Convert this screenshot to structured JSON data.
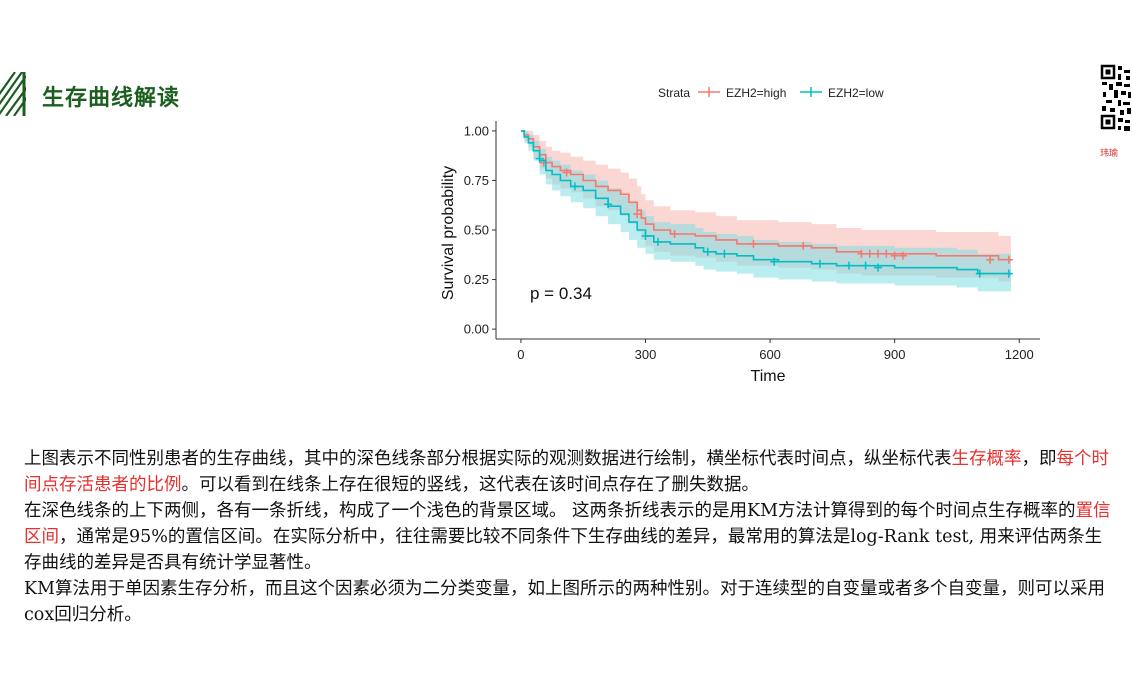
{
  "header": {
    "title": "生存曲线解读"
  },
  "qr": {
    "caption": "玮瑜"
  },
  "chart_data": {
    "type": "line",
    "subtype": "kaplan-meier",
    "legend": {
      "title": "Strata",
      "placement": "top",
      "entries": [
        "EZH2=high",
        "EZH2=low"
      ]
    },
    "xlabel": "Time",
    "ylabel": "Survival probability",
    "xlim": [
      -60,
      1250
    ],
    "ylim": [
      -0.05,
      1.05
    ],
    "xticks": [
      0,
      300,
      600,
      900,
      1200
    ],
    "yticks": [
      0.0,
      0.25,
      0.5,
      0.75,
      1.0
    ],
    "xtick_labels": [
      "0",
      "300",
      "600",
      "900",
      "1200"
    ],
    "ytick_labels": [
      "0.00",
      "0.25",
      "0.50",
      "0.75",
      "1.00"
    ],
    "grid": false,
    "annotation": "p = 0.34",
    "colors": {
      "high": "#f8766d",
      "low": "#00bfc4",
      "high_band": "#f9c9c5",
      "low_band": "#7fdfe2"
    },
    "series": [
      {
        "name": "EZH2=high",
        "color": "#f8766d",
        "steps": [
          [
            0,
            1.0
          ],
          [
            8,
            0.98
          ],
          [
            18,
            0.96
          ],
          [
            30,
            0.92
          ],
          [
            45,
            0.88
          ],
          [
            60,
            0.84
          ],
          [
            75,
            0.82
          ],
          [
            95,
            0.8
          ],
          [
            120,
            0.78
          ],
          [
            150,
            0.75
          ],
          [
            180,
            0.72
          ],
          [
            210,
            0.7
          ],
          [
            240,
            0.68
          ],
          [
            260,
            0.64
          ],
          [
            280,
            0.6
          ],
          [
            290,
            0.56
          ],
          [
            300,
            0.53
          ],
          [
            320,
            0.5
          ],
          [
            360,
            0.48
          ],
          [
            420,
            0.47
          ],
          [
            470,
            0.45
          ],
          [
            520,
            0.43
          ],
          [
            620,
            0.42
          ],
          [
            700,
            0.41
          ],
          [
            760,
            0.39
          ],
          [
            820,
            0.38
          ],
          [
            1000,
            0.37
          ],
          [
            1150,
            0.35
          ],
          [
            1180,
            0.35
          ]
        ],
        "lower": [
          [
            0,
            1.0
          ],
          [
            8,
            0.95
          ],
          [
            18,
            0.92
          ],
          [
            30,
            0.86
          ],
          [
            45,
            0.81
          ],
          [
            60,
            0.76
          ],
          [
            75,
            0.73
          ],
          [
            95,
            0.71
          ],
          [
            120,
            0.69
          ],
          [
            150,
            0.66
          ],
          [
            180,
            0.62
          ],
          [
            210,
            0.6
          ],
          [
            240,
            0.57
          ],
          [
            260,
            0.53
          ],
          [
            280,
            0.49
          ],
          [
            290,
            0.45
          ],
          [
            300,
            0.42
          ],
          [
            320,
            0.39
          ],
          [
            360,
            0.37
          ],
          [
            420,
            0.36
          ],
          [
            470,
            0.34
          ],
          [
            520,
            0.32
          ],
          [
            620,
            0.31
          ],
          [
            700,
            0.3
          ],
          [
            760,
            0.28
          ],
          [
            820,
            0.27
          ],
          [
            1000,
            0.26
          ],
          [
            1150,
            0.24
          ],
          [
            1180,
            0.24
          ]
        ],
        "upper": [
          [
            0,
            1.0
          ],
          [
            8,
            1.0
          ],
          [
            18,
            1.0
          ],
          [
            30,
            0.98
          ],
          [
            45,
            0.95
          ],
          [
            60,
            0.92
          ],
          [
            75,
            0.9
          ],
          [
            95,
            0.89
          ],
          [
            120,
            0.87
          ],
          [
            150,
            0.85
          ],
          [
            180,
            0.83
          ],
          [
            210,
            0.81
          ],
          [
            240,
            0.79
          ],
          [
            260,
            0.76
          ],
          [
            280,
            0.72
          ],
          [
            290,
            0.68
          ],
          [
            300,
            0.65
          ],
          [
            320,
            0.62
          ],
          [
            360,
            0.6
          ],
          [
            420,
            0.59
          ],
          [
            470,
            0.57
          ],
          [
            520,
            0.55
          ],
          [
            620,
            0.54
          ],
          [
            700,
            0.53
          ],
          [
            760,
            0.51
          ],
          [
            820,
            0.5
          ],
          [
            1000,
            0.49
          ],
          [
            1150,
            0.47
          ],
          [
            1180,
            0.47
          ]
        ],
        "censors": [
          [
            55,
            0.84
          ],
          [
            110,
            0.79
          ],
          [
            280,
            0.58
          ],
          [
            370,
            0.48
          ],
          [
            560,
            0.43
          ],
          [
            680,
            0.42
          ],
          [
            820,
            0.38
          ],
          [
            840,
            0.38
          ],
          [
            860,
            0.38
          ],
          [
            880,
            0.38
          ],
          [
            900,
            0.37
          ],
          [
            920,
            0.37
          ],
          [
            1130,
            0.35
          ],
          [
            1175,
            0.35
          ]
        ]
      },
      {
        "name": "EZH2=low",
        "color": "#00bfc4",
        "steps": [
          [
            0,
            1.0
          ],
          [
            8,
            0.97
          ],
          [
            18,
            0.94
          ],
          [
            30,
            0.9
          ],
          [
            45,
            0.85
          ],
          [
            60,
            0.8
          ],
          [
            75,
            0.78
          ],
          [
            95,
            0.75
          ],
          [
            120,
            0.72
          ],
          [
            150,
            0.7
          ],
          [
            180,
            0.66
          ],
          [
            210,
            0.62
          ],
          [
            240,
            0.58
          ],
          [
            260,
            0.54
          ],
          [
            280,
            0.5
          ],
          [
            300,
            0.47
          ],
          [
            320,
            0.44
          ],
          [
            360,
            0.43
          ],
          [
            420,
            0.41
          ],
          [
            440,
            0.39
          ],
          [
            470,
            0.38
          ],
          [
            520,
            0.37
          ],
          [
            560,
            0.35
          ],
          [
            620,
            0.34
          ],
          [
            700,
            0.33
          ],
          [
            760,
            0.32
          ],
          [
            900,
            0.31
          ],
          [
            1050,
            0.3
          ],
          [
            1100,
            0.28
          ],
          [
            1180,
            0.28
          ]
        ],
        "lower": [
          [
            0,
            1.0
          ],
          [
            8,
            0.94
          ],
          [
            18,
            0.9
          ],
          [
            30,
            0.85
          ],
          [
            45,
            0.78
          ],
          [
            60,
            0.73
          ],
          [
            75,
            0.7
          ],
          [
            95,
            0.67
          ],
          [
            120,
            0.64
          ],
          [
            150,
            0.61
          ],
          [
            180,
            0.57
          ],
          [
            210,
            0.53
          ],
          [
            240,
            0.49
          ],
          [
            260,
            0.45
          ],
          [
            280,
            0.41
          ],
          [
            300,
            0.38
          ],
          [
            320,
            0.35
          ],
          [
            360,
            0.34
          ],
          [
            420,
            0.32
          ],
          [
            440,
            0.3
          ],
          [
            470,
            0.29
          ],
          [
            520,
            0.28
          ],
          [
            560,
            0.26
          ],
          [
            620,
            0.25
          ],
          [
            700,
            0.24
          ],
          [
            760,
            0.23
          ],
          [
            900,
            0.22
          ],
          [
            1050,
            0.21
          ],
          [
            1100,
            0.19
          ],
          [
            1180,
            0.19
          ]
        ],
        "upper": [
          [
            0,
            1.0
          ],
          [
            8,
            1.0
          ],
          [
            18,
            0.98
          ],
          [
            30,
            0.95
          ],
          [
            45,
            0.91
          ],
          [
            60,
            0.87
          ],
          [
            75,
            0.85
          ],
          [
            95,
            0.83
          ],
          [
            120,
            0.8
          ],
          [
            150,
            0.78
          ],
          [
            180,
            0.75
          ],
          [
            210,
            0.71
          ],
          [
            240,
            0.67
          ],
          [
            260,
            0.64
          ],
          [
            280,
            0.6
          ],
          [
            300,
            0.57
          ],
          [
            320,
            0.54
          ],
          [
            360,
            0.53
          ],
          [
            420,
            0.51
          ],
          [
            440,
            0.49
          ],
          [
            470,
            0.48
          ],
          [
            520,
            0.47
          ],
          [
            560,
            0.45
          ],
          [
            620,
            0.44
          ],
          [
            700,
            0.43
          ],
          [
            760,
            0.42
          ],
          [
            900,
            0.41
          ],
          [
            1050,
            0.4
          ],
          [
            1100,
            0.38
          ],
          [
            1180,
            0.38
          ]
        ],
        "censors": [
          [
            45,
            0.86
          ],
          [
            130,
            0.72
          ],
          [
            210,
            0.63
          ],
          [
            300,
            0.47
          ],
          [
            330,
            0.44
          ],
          [
            450,
            0.39
          ],
          [
            490,
            0.38
          ],
          [
            610,
            0.34
          ],
          [
            720,
            0.33
          ],
          [
            790,
            0.32
          ],
          [
            830,
            0.32
          ],
          [
            860,
            0.31
          ],
          [
            1105,
            0.28
          ],
          [
            1175,
            0.28
          ]
        ]
      }
    ]
  },
  "text": {
    "p1a": "上图表示不同性别患者的生存曲线，其中的深色线条部分根据实际的观测数据进行绘制，横坐标代表时间点，纵坐标代表",
    "p1b": "生存概率",
    "p1c": "，即",
    "p1d": "每个时间点存活患者的比例",
    "p1e": "。可以看到在线条上存在很短的竖线，这代表在该时间点存在了删失数据。",
    "p2a": "在深色线条的上下两侧，各有一条折线，构成了一个浅色的背景区域。 这两条折线表示的是用KM方法计算得到的每个时间点生存概率的",
    "p2b": "置信区间",
    "p2c": "，通常是95%的置信区间。在实际分析中，往往需要比较不同条件下生存曲线的差异，最常用的算法是log-Rank test, 用来评估两条生存曲线的差异是否具有统计学显著性。",
    "p3": "KM算法用于单因素生存分析，而且这个因素必须为二分类变量，如上图所示的两种性别。对于连续型的自变量或者多个自变量，则可以采用cox回归分析。"
  }
}
